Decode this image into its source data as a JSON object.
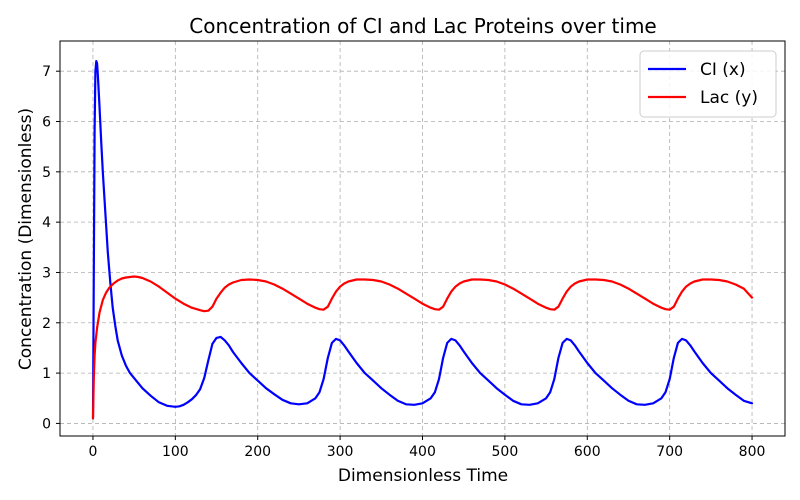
{
  "chart_data": {
    "type": "line",
    "title": "Concentration of CI and Lac Proteins over time",
    "xlabel": "Dimensionless Time",
    "ylabel": "Concentration (Dimensionless)",
    "xlim": [
      -40,
      840
    ],
    "ylim": [
      -0.25,
      7.6
    ],
    "xticks": [
      0,
      100,
      200,
      300,
      400,
      500,
      600,
      700,
      800
    ],
    "yticks": [
      0,
      1,
      2,
      3,
      4,
      5,
      6,
      7
    ],
    "grid": true,
    "legend_position": "top-right",
    "series": [
      {
        "name": "CI (x)",
        "color": "#0000ff",
        "x": [
          0,
          1,
          2,
          3,
          4,
          5,
          6,
          8,
          10,
          12,
          15,
          18,
          21,
          24,
          27,
          30,
          35,
          40,
          45,
          50,
          60,
          70,
          80,
          90,
          100,
          105,
          110,
          115,
          120,
          125,
          130,
          135,
          140,
          145,
          150,
          155,
          160,
          165,
          170,
          180,
          190,
          200,
          210,
          220,
          230,
          240,
          250,
          260,
          270,
          275,
          280,
          285,
          290,
          295,
          300,
          305,
          310,
          320,
          330,
          340,
          350,
          360,
          370,
          380,
          390,
          400,
          410,
          415,
          420,
          425,
          430,
          435,
          440,
          445,
          450,
          460,
          470,
          480,
          490,
          500,
          510,
          520,
          530,
          540,
          550,
          555,
          560,
          565,
          570,
          575,
          580,
          585,
          590,
          600,
          610,
          620,
          630,
          640,
          650,
          660,
          670,
          680,
          690,
          695,
          700,
          705,
          710,
          715,
          720,
          725,
          730,
          740,
          750,
          760,
          770,
          780,
          790,
          800
        ],
        "y": [
          0.1,
          3.0,
          5.8,
          7.0,
          7.2,
          7.15,
          6.9,
          6.3,
          5.6,
          5.0,
          4.2,
          3.4,
          2.8,
          2.3,
          1.95,
          1.65,
          1.35,
          1.15,
          1.0,
          0.9,
          0.7,
          0.55,
          0.42,
          0.35,
          0.33,
          0.34,
          0.37,
          0.42,
          0.48,
          0.56,
          0.68,
          0.9,
          1.25,
          1.58,
          1.7,
          1.72,
          1.65,
          1.55,
          1.42,
          1.2,
          1.0,
          0.85,
          0.7,
          0.58,
          0.47,
          0.4,
          0.38,
          0.4,
          0.5,
          0.62,
          0.88,
          1.3,
          1.6,
          1.68,
          1.65,
          1.55,
          1.43,
          1.2,
          1.0,
          0.85,
          0.7,
          0.57,
          0.45,
          0.38,
          0.37,
          0.4,
          0.5,
          0.62,
          0.88,
          1.3,
          1.6,
          1.68,
          1.65,
          1.55,
          1.43,
          1.2,
          1.0,
          0.85,
          0.7,
          0.57,
          0.45,
          0.38,
          0.37,
          0.4,
          0.5,
          0.62,
          0.88,
          1.3,
          1.6,
          1.68,
          1.65,
          1.55,
          1.43,
          1.2,
          1.0,
          0.85,
          0.7,
          0.57,
          0.45,
          0.38,
          0.37,
          0.4,
          0.5,
          0.62,
          0.88,
          1.3,
          1.6,
          1.68,
          1.65,
          1.55,
          1.43,
          1.2,
          1.0,
          0.85,
          0.7,
          0.57,
          0.45,
          0.4
        ]
      },
      {
        "name": "Lac (y)",
        "color": "#ff0000",
        "x": [
          0,
          1,
          2,
          3,
          5,
          8,
          12,
          16,
          20,
          25,
          30,
          35,
          40,
          45,
          50,
          55,
          60,
          70,
          80,
          90,
          100,
          110,
          120,
          130,
          135,
          140,
          145,
          150,
          155,
          160,
          165,
          170,
          180,
          190,
          200,
          210,
          220,
          230,
          240,
          250,
          260,
          270,
          275,
          280,
          285,
          290,
          295,
          300,
          305,
          310,
          320,
          330,
          340,
          350,
          360,
          370,
          380,
          390,
          400,
          410,
          415,
          420,
          425,
          430,
          435,
          440,
          445,
          450,
          460,
          470,
          480,
          490,
          500,
          510,
          520,
          530,
          540,
          550,
          555,
          560,
          565,
          570,
          575,
          580,
          585,
          590,
          600,
          610,
          620,
          630,
          640,
          650,
          660,
          670,
          680,
          690,
          695,
          700,
          705,
          710,
          715,
          720,
          725,
          730,
          740,
          750,
          760,
          770,
          780,
          790,
          800
        ],
        "y": [
          0.1,
          0.9,
          1.35,
          1.6,
          1.9,
          2.2,
          2.45,
          2.6,
          2.7,
          2.78,
          2.84,
          2.88,
          2.9,
          2.91,
          2.92,
          2.91,
          2.89,
          2.82,
          2.72,
          2.6,
          2.48,
          2.38,
          2.3,
          2.25,
          2.23,
          2.24,
          2.32,
          2.48,
          2.6,
          2.7,
          2.76,
          2.8,
          2.85,
          2.86,
          2.85,
          2.82,
          2.76,
          2.68,
          2.58,
          2.48,
          2.38,
          2.3,
          2.27,
          2.26,
          2.32,
          2.48,
          2.62,
          2.72,
          2.78,
          2.82,
          2.86,
          2.86,
          2.85,
          2.82,
          2.76,
          2.68,
          2.58,
          2.48,
          2.38,
          2.3,
          2.27,
          2.26,
          2.32,
          2.48,
          2.62,
          2.72,
          2.78,
          2.82,
          2.86,
          2.86,
          2.85,
          2.82,
          2.76,
          2.68,
          2.58,
          2.48,
          2.38,
          2.3,
          2.27,
          2.26,
          2.32,
          2.48,
          2.62,
          2.72,
          2.78,
          2.82,
          2.86,
          2.86,
          2.85,
          2.82,
          2.76,
          2.68,
          2.58,
          2.48,
          2.38,
          2.3,
          2.27,
          2.26,
          2.32,
          2.48,
          2.62,
          2.72,
          2.78,
          2.82,
          2.86,
          2.86,
          2.85,
          2.82,
          2.76,
          2.68,
          2.5
        ]
      }
    ]
  }
}
